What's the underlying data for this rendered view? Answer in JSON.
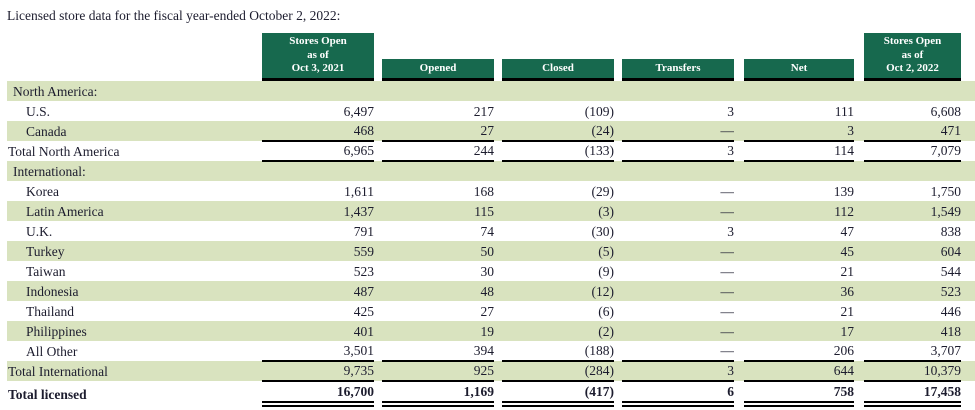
{
  "title": "Licensed store data for the fiscal year-ended October 2, 2022:",
  "colors": {
    "header_bg": "#17694E",
    "shaded_row_bg": "#D9E3BF",
    "text": "#1C1C2E"
  },
  "table": {
    "column_headers": [
      {
        "lines": [
          "Stores Open",
          "as of",
          "Oct 3, 2021"
        ],
        "tall": true
      },
      {
        "lines": [
          "Opened"
        ],
        "tall": false
      },
      {
        "lines": [
          "Closed"
        ],
        "tall": false
      },
      {
        "lines": [
          "Transfers"
        ],
        "tall": false
      },
      {
        "lines": [
          "Net"
        ],
        "tall": false
      },
      {
        "lines": [
          "Stores Open",
          "as of",
          "Oct 2, 2022"
        ],
        "tall": true
      }
    ],
    "rows": [
      {
        "label": "North America:",
        "indent": "section",
        "shaded": true,
        "bold": false,
        "border": "none",
        "values": [
          "",
          "",
          "",
          "",
          "",
          ""
        ]
      },
      {
        "label": "U.S.",
        "indent": "item",
        "shaded": false,
        "bold": false,
        "border": "none",
        "values": [
          "6,497",
          "217",
          "(109)",
          "3",
          "111",
          "6,608"
        ]
      },
      {
        "label": "Canada",
        "indent": "item",
        "shaded": true,
        "bold": false,
        "border": "single",
        "values": [
          "468",
          "27",
          "(24)",
          "—",
          "3",
          "471"
        ]
      },
      {
        "label": "Total North America",
        "indent": "total",
        "shaded": false,
        "bold": false,
        "border": "single",
        "values": [
          "6,965",
          "244",
          "(133)",
          "3",
          "114",
          "7,079"
        ]
      },
      {
        "label": "International:",
        "indent": "section",
        "shaded": true,
        "bold": false,
        "border": "none",
        "values": [
          "",
          "",
          "",
          "",
          "",
          ""
        ]
      },
      {
        "label": "Korea",
        "indent": "item",
        "shaded": false,
        "bold": false,
        "border": "none",
        "values": [
          "1,611",
          "168",
          "(29)",
          "—",
          "139",
          "1,750"
        ]
      },
      {
        "label": "Latin America",
        "indent": "item",
        "shaded": true,
        "bold": false,
        "border": "none",
        "values": [
          "1,437",
          "115",
          "(3)",
          "—",
          "112",
          "1,549"
        ]
      },
      {
        "label": "U.K.",
        "indent": "item",
        "shaded": false,
        "bold": false,
        "border": "none",
        "values": [
          "791",
          "74",
          "(30)",
          "3",
          "47",
          "838"
        ]
      },
      {
        "label": "Turkey",
        "indent": "item",
        "shaded": true,
        "bold": false,
        "border": "none",
        "values": [
          "559",
          "50",
          "(5)",
          "—",
          "45",
          "604"
        ]
      },
      {
        "label": "Taiwan",
        "indent": "item",
        "shaded": false,
        "bold": false,
        "border": "none",
        "values": [
          "523",
          "30",
          "(9)",
          "—",
          "21",
          "544"
        ]
      },
      {
        "label": "Indonesia",
        "indent": "item",
        "shaded": true,
        "bold": false,
        "border": "none",
        "values": [
          "487",
          "48",
          "(12)",
          "—",
          "36",
          "523"
        ]
      },
      {
        "label": "Thailand",
        "indent": "item",
        "shaded": false,
        "bold": false,
        "border": "none",
        "values": [
          "425",
          "27",
          "(6)",
          "—",
          "21",
          "446"
        ]
      },
      {
        "label": "Philippines",
        "indent": "item",
        "shaded": true,
        "bold": false,
        "border": "none",
        "values": [
          "401",
          "19",
          "(2)",
          "—",
          "17",
          "418"
        ]
      },
      {
        "label": "All Other",
        "indent": "item",
        "shaded": false,
        "bold": false,
        "border": "single",
        "values": [
          "3,501",
          "394",
          "(188)",
          "—",
          "206",
          "3,707"
        ]
      },
      {
        "label": "Total International",
        "indent": "total",
        "shaded": true,
        "bold": false,
        "border": "single",
        "values": [
          "9,735",
          "925",
          "(284)",
          "3",
          "644",
          "10,379"
        ]
      },
      {
        "label": "Total licensed",
        "indent": "total",
        "shaded": false,
        "bold": true,
        "border": "double",
        "values": [
          "16,700",
          "1,169",
          "(417)",
          "6",
          "758",
          "17,458"
        ]
      }
    ]
  }
}
